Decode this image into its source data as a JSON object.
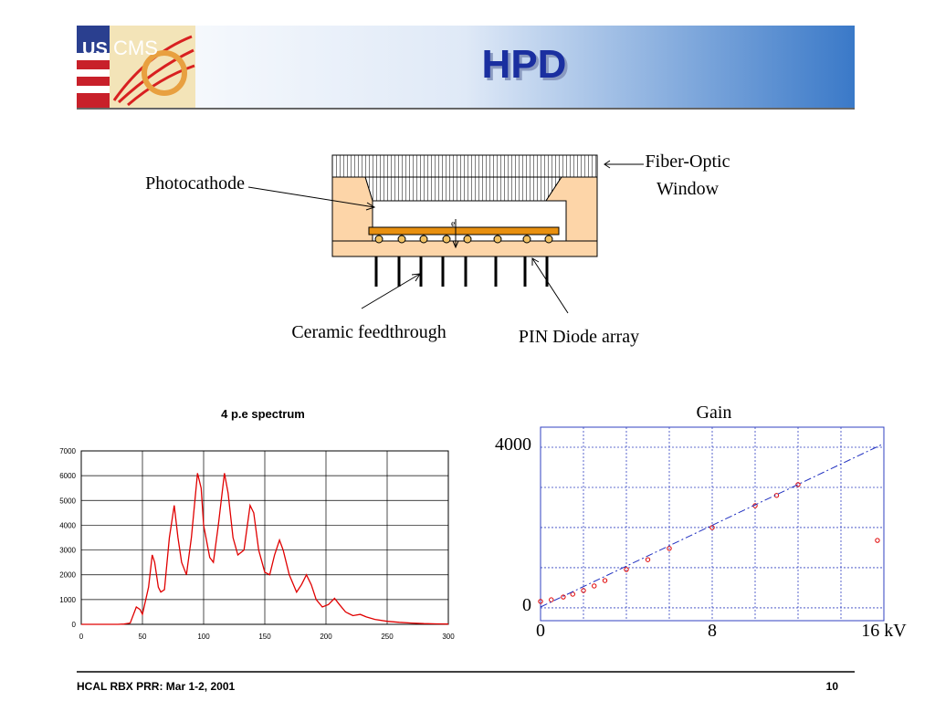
{
  "header": {
    "title": "HPD",
    "logo_text": [
      "US",
      "CMS"
    ]
  },
  "diagram": {
    "photocathode": "Photocathode",
    "window": [
      "Fiber-Optic",
      "Window"
    ],
    "feedthrough": "Ceramic feedthrough",
    "pin": "PIN Diode array",
    "electron": "e"
  },
  "chart_data": [
    {
      "type": "line",
      "title": "4 p.e spectrum",
      "color": "#e00000",
      "x": [
        0,
        10,
        20,
        30,
        35,
        40,
        45,
        48,
        50,
        55,
        58,
        60,
        63,
        65,
        68,
        72,
        76,
        79,
        82,
        86,
        90,
        95,
        98,
        100,
        105,
        108,
        112,
        117,
        120,
        124,
        128,
        133,
        138,
        141,
        145,
        150,
        154,
        158,
        162,
        165,
        170,
        176,
        180,
        184,
        188,
        192,
        197,
        202,
        207,
        211,
        216,
        222,
        228,
        233,
        240,
        250,
        260,
        270,
        280,
        290,
        300
      ],
      "values": [
        0,
        0,
        0,
        0,
        10,
        50,
        700,
        600,
        400,
        1500,
        2800,
        2500,
        1500,
        1300,
        1400,
        3500,
        4800,
        3500,
        2500,
        2000,
        3500,
        6100,
        5500,
        4000,
        2700,
        2500,
        4000,
        6100,
        5300,
        3500,
        2800,
        3000,
        4800,
        4500,
        3000,
        2100,
        2000,
        2800,
        3400,
        3000,
        2000,
        1300,
        1600,
        2000,
        1600,
        1000,
        700,
        800,
        1050,
        800,
        500,
        350,
        400,
        300,
        200,
        120,
        80,
        50,
        30,
        20,
        10
      ],
      "xlim": [
        0,
        300
      ],
      "xticks": [
        0,
        50,
        100,
        150,
        200,
        250,
        300
      ],
      "ylim": [
        0,
        7000
      ],
      "yticks": [
        0,
        1000,
        2000,
        3000,
        4000,
        5000,
        6000,
        7000
      ],
      "grid": true
    },
    {
      "type": "scatter",
      "title": "Gain",
      "series": [
        {
          "color": "#e00000",
          "x": [
            0,
            0.5,
            1.06,
            1.5,
            2,
            2.5,
            3,
            4,
            5,
            6,
            8,
            10,
            11,
            12,
            15.7
          ],
          "values": [
            160,
            200,
            270,
            340,
            430,
            545,
            680,
            955,
            1200,
            1480,
            2000,
            2545,
            2800,
            3070,
            1680
          ]
        },
        {
          "type": "line",
          "style": "dashed",
          "color": "#2030c0",
          "x": [
            0,
            16
          ],
          "values": [
            20,
            4090
          ]
        }
      ],
      "xlim": [
        0,
        16
      ],
      "xticks": [
        0,
        8,
        {
          "value": 16,
          "label": "16 kV"
        }
      ],
      "xgrid": [
        0,
        2,
        4,
        6,
        8,
        10,
        12,
        14,
        16
      ],
      "ylim": [
        -320,
        4500
      ],
      "yticks": [
        0,
        4000
      ],
      "ygrid": [
        0,
        1000,
        2000,
        3000,
        4000
      ],
      "grid": true
    }
  ],
  "footer": {
    "left": "HCAL RBX PRR:  Mar 1-2, 2001",
    "page": "10"
  }
}
